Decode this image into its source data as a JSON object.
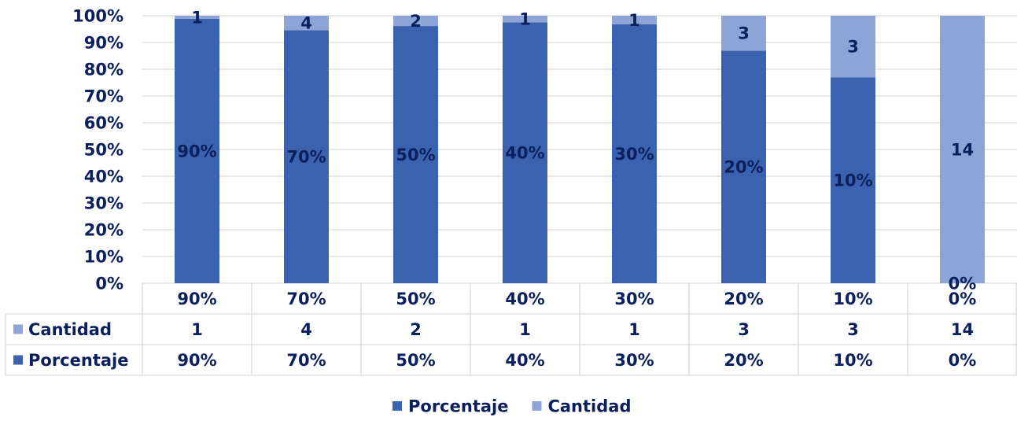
{
  "chart_data": {
    "type": "bar",
    "stacked": "percent",
    "categories": [
      "90%",
      "70%",
      "50%",
      "40%",
      "30%",
      "20%",
      "10%",
      "0%"
    ],
    "series": [
      {
        "name": "Porcentaje",
        "values": [
          90,
          70,
          50,
          40,
          30,
          20,
          10,
          0
        ],
        "labels": [
          "90%",
          "70%",
          "50%",
          "40%",
          "30%",
          "20%",
          "10%",
          "0%"
        ],
        "color": "#3a62ae"
      },
      {
        "name": "Cantidad",
        "values": [
          1,
          4,
          2,
          1,
          1,
          3,
          3,
          14
        ],
        "labels": [
          "1",
          "4",
          "2",
          "1",
          "1",
          "3",
          "3",
          "14"
        ],
        "color": "#8ea3d6"
      }
    ],
    "ytick_labels": [
      "0%",
      "10%",
      "20%",
      "30%",
      "40%",
      "50%",
      "60%",
      "70%",
      "80%",
      "90%",
      "100%"
    ],
    "ylim": [
      0,
      100
    ],
    "grid": true,
    "legend": {
      "position": "bottom",
      "entries": [
        "Porcentaje",
        "Cantidad"
      ]
    },
    "data_table": {
      "rows": [
        {
          "name": "Cantidad",
          "values": [
            "1",
            "4",
            "2",
            "1",
            "1",
            "3",
            "3",
            "14"
          ]
        },
        {
          "name": "Porcentaje",
          "values": [
            "90%",
            "70%",
            "50%",
            "40%",
            "30%",
            "20%",
            "10%",
            "0%"
          ]
        }
      ]
    }
  }
}
